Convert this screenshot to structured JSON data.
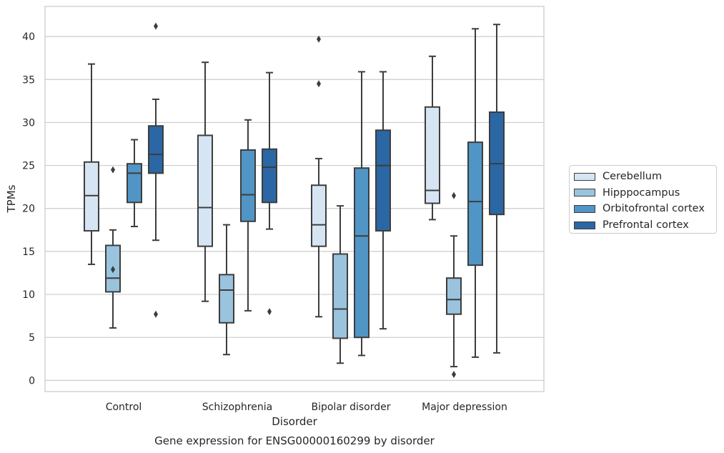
{
  "chart_data": {
    "type": "box",
    "title": "",
    "xlabel": "Disorder",
    "ylabel": "TPMs",
    "caption": "Gene expression for ENSG00000160299 by disorder",
    "categories": [
      "Control",
      "Schizophrenia",
      "Bipolar disorder",
      "Major depression"
    ],
    "ylim": [
      -1.3,
      43.5
    ],
    "yticks": [
      0,
      5,
      10,
      15,
      20,
      25,
      30,
      35,
      40
    ],
    "grid": true,
    "legend_position": "right",
    "series": [
      {
        "name": "Cerebellum",
        "color": "#d6e5f3",
        "boxes": [
          {
            "whisker_low": 13.5,
            "q1": 17.4,
            "median": 21.5,
            "q3": 25.4,
            "whisker_high": 36.8,
            "outliers": []
          },
          {
            "whisker_low": 9.2,
            "q1": 15.6,
            "median": 20.1,
            "q3": 28.5,
            "whisker_high": 37.0,
            "outliers": []
          },
          {
            "whisker_low": 7.4,
            "q1": 15.6,
            "median": 18.1,
            "q3": 22.7,
            "whisker_high": 25.8,
            "outliers": [
              34.5,
              39.7
            ]
          },
          {
            "whisker_low": 18.7,
            "q1": 20.6,
            "median": 22.1,
            "q3": 31.8,
            "whisker_high": 37.7,
            "outliers": []
          }
        ]
      },
      {
        "name": "Hipppocampus",
        "color": "#9ac3dd",
        "boxes": [
          {
            "whisker_low": 6.1,
            "q1": 10.3,
            "median": 11.9,
            "q3": 15.7,
            "whisker_high": 17.5,
            "outliers": [
              24.5,
              12.9
            ]
          },
          {
            "whisker_low": 3.0,
            "q1": 6.7,
            "median": 10.5,
            "q3": 12.3,
            "whisker_high": 18.1,
            "outliers": []
          },
          {
            "whisker_low": 2.0,
            "q1": 4.9,
            "median": 8.3,
            "q3": 14.7,
            "whisker_high": 20.3,
            "outliers": []
          },
          {
            "whisker_low": 1.6,
            "q1": 7.7,
            "median": 9.4,
            "q3": 11.9,
            "whisker_high": 16.8,
            "outliers": [
              0.7,
              21.5
            ]
          }
        ]
      },
      {
        "name": "Orbitofrontal cortex",
        "color": "#5095c5",
        "boxes": [
          {
            "whisker_low": 17.9,
            "q1": 20.7,
            "median": 24.1,
            "q3": 25.2,
            "whisker_high": 28.0,
            "outliers": []
          },
          {
            "whisker_low": 8.1,
            "q1": 18.5,
            "median": 21.6,
            "q3": 26.8,
            "whisker_high": 30.3,
            "outliers": []
          },
          {
            "whisker_low": 2.9,
            "q1": 5.0,
            "median": 16.8,
            "q3": 24.7,
            "whisker_high": 35.9,
            "outliers": []
          },
          {
            "whisker_low": 2.7,
            "q1": 13.4,
            "median": 20.8,
            "q3": 27.7,
            "whisker_high": 40.9,
            "outliers": []
          }
        ]
      },
      {
        "name": "Prefrontal cortex",
        "color": "#2a67a4",
        "boxes": [
          {
            "whisker_low": 16.3,
            "q1": 24.1,
            "median": 26.3,
            "q3": 29.6,
            "whisker_high": 32.7,
            "outliers": [
              41.2,
              7.7
            ]
          },
          {
            "whisker_low": 17.6,
            "q1": 20.7,
            "median": 24.8,
            "q3": 26.9,
            "whisker_high": 35.8,
            "outliers": [
              8.0
            ]
          },
          {
            "whisker_low": 6.0,
            "q1": 17.4,
            "median": 25.0,
            "q3": 29.1,
            "whisker_high": 35.9,
            "outliers": []
          },
          {
            "whisker_low": 3.2,
            "q1": 19.3,
            "median": 25.2,
            "q3": 31.2,
            "whisker_high": 41.4,
            "outliers": []
          }
        ]
      }
    ]
  }
}
